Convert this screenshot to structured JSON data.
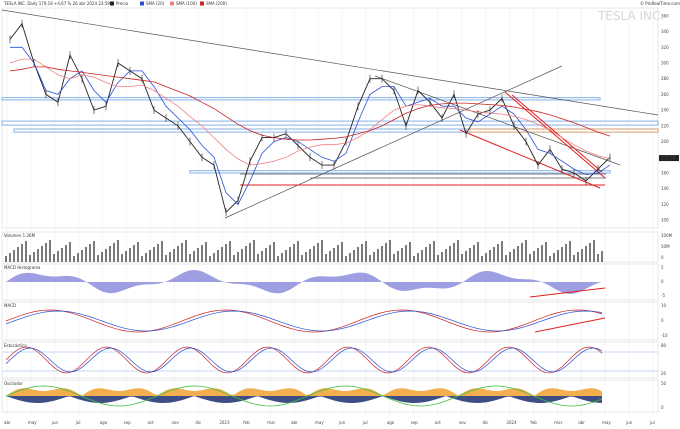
{
  "header": {
    "title": "TESLA INC. Daily 179,18 +4,67 % 26 abr 2024 23:59",
    "brand": "© ProRealTime.com",
    "watermark": "TESLA INC.",
    "legend": [
      {
        "label": "Precio",
        "color": "#222222"
      },
      {
        "label": "SMA (20)",
        "color": "#2a4fd6"
      },
      {
        "label": "SMA (100)",
        "color": "#f08080"
      },
      {
        "label": "SMA (200)",
        "color": "#cc2222"
      }
    ]
  },
  "price_axis_labels": [
    "360",
    "340",
    "320",
    "300",
    "280",
    "260",
    "240",
    "220",
    "200",
    "180",
    "160",
    "140",
    "120",
    "100"
  ],
  "last_price_label": "179,18",
  "subpanels": [
    {
      "name": "volume",
      "label": "Volumen 1.26M",
      "axis": [
        "100M",
        "50M",
        "0"
      ]
    },
    {
      "name": "macd-histogram",
      "label": "MACD Histograma",
      "axis": [
        "5",
        "0",
        "-5"
      ]
    },
    {
      "name": "macd",
      "label": "MACD",
      "axis": [
        "10",
        "0",
        "-10"
      ]
    },
    {
      "name": "stochastic",
      "label": "Estocástico",
      "axis": [
        "80",
        "20"
      ]
    },
    {
      "name": "oscillator",
      "label": "Oscilador",
      "axis": [
        "50",
        "0"
      ]
    }
  ],
  "x_axis_labels": [
    "abr",
    "may",
    "jun",
    "jul",
    "ago",
    "sep",
    "oct",
    "nov",
    "dic",
    "2023",
    "feb",
    "mar",
    "abr",
    "may",
    "jun",
    "jul",
    "ago",
    "sep",
    "oct",
    "nov",
    "dic",
    "2024",
    "feb",
    "mar",
    "abr",
    "may",
    "jun",
    "jul"
  ],
  "chart_data": {
    "type": "line",
    "title": "TESLA INC.",
    "series": [
      {
        "name": "Precio",
        "values": [
          330,
          350,
          300,
          260,
          250,
          310,
          280,
          240,
          245,
          300,
          290,
          280,
          240,
          230,
          220,
          200,
          180,
          170,
          110,
          125,
          175,
          205,
          205,
          210,
          195,
          180,
          170,
          170,
          200,
          245,
          280,
          280,
          265,
          220,
          265,
          250,
          230,
          260,
          210,
          235,
          240,
          255,
          220,
          200,
          170,
          190,
          165,
          160,
          150,
          165,
          180
        ]
      },
      {
        "name": "SMA (20)",
        "values": [
          320,
          320,
          300,
          265,
          260,
          280,
          290,
          265,
          250,
          275,
          290,
          290,
          270,
          245,
          230,
          215,
          195,
          180,
          135,
          120,
          150,
          185,
          200,
          205,
          200,
          190,
          180,
          175,
          185,
          225,
          260,
          270,
          270,
          245,
          250,
          255,
          245,
          245,
          230,
          225,
          235,
          245,
          235,
          215,
          190,
          185,
          175,
          165,
          158,
          160,
          170
        ]
      },
      {
        "name": "SMA (100)",
        "values": [
          300,
          305,
          305,
          295,
          285,
          280,
          285,
          282,
          275,
          270,
          270,
          272,
          265,
          255,
          245,
          232,
          220,
          205,
          190,
          178,
          170,
          172,
          175,
          180,
          188,
          193,
          196,
          196,
          198,
          205,
          215,
          228,
          240,
          245,
          247,
          245,
          243,
          242,
          240,
          238,
          236,
          235,
          232,
          228,
          222,
          215,
          205,
          196,
          188,
          182,
          178
        ]
      },
      {
        "name": "SMA (200)",
        "values": [
          290,
          292,
          295,
          295,
          292,
          290,
          288,
          286,
          284,
          282,
          280,
          278,
          276,
          270,
          264,
          258,
          250,
          242,
          232,
          222,
          214,
          208,
          205,
          203,
          202,
          202,
          203,
          204,
          206,
          210,
          214,
          220,
          228,
          236,
          242,
          246,
          248,
          249,
          249,
          248,
          247,
          246,
          244,
          241,
          238,
          234,
          229,
          224,
          218,
          212,
          207
        ]
      }
    ],
    "ylim": [
      90,
      370
    ],
    "xlabel": "",
    "ylabel": ""
  },
  "colors": {
    "price": "#222222",
    "sma20": "#2a4fd6",
    "sma100": "#f08080",
    "sma200": "#cc2222",
    "trend": "#555555",
    "red": "#e02020",
    "zone": "#8fb6ea",
    "zone_orange": "#f2b27a",
    "volume": "#333333",
    "hist": "#7d7dd8",
    "stoch_k": "#cc2222",
    "stoch_d": "#2a4fd6",
    "osc_orange": "#f0a030",
    "osc_navy": "#1c2f6e",
    "osc_green": "#40c040"
  }
}
